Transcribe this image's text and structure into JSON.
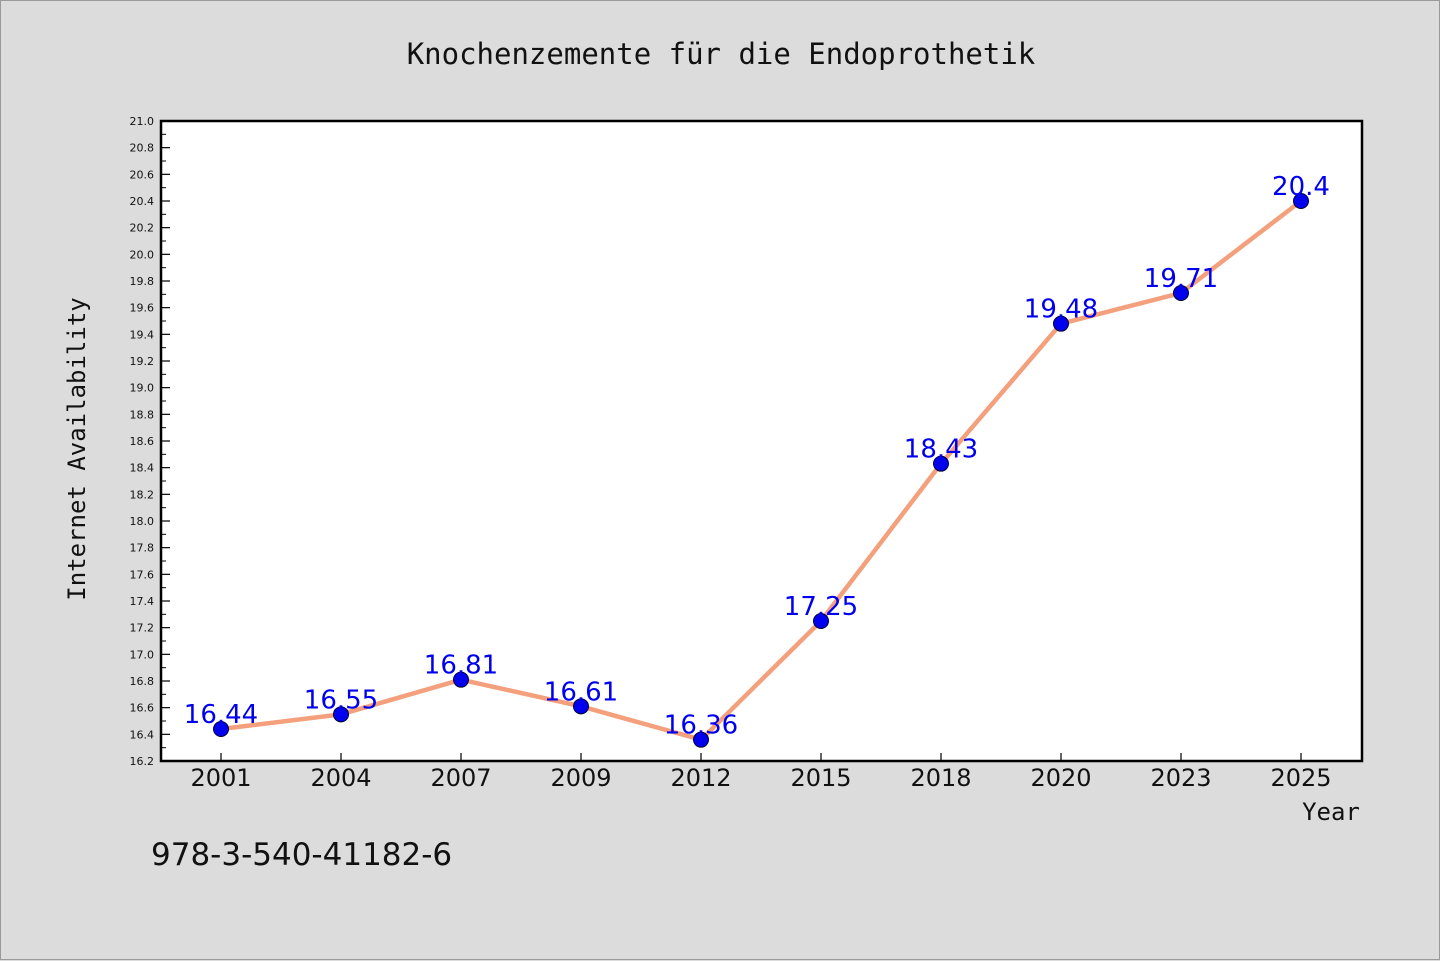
{
  "chart_data": {
    "type": "line",
    "title": "Knochenzemente für die Endoprothetik",
    "xlabel": "Year",
    "ylabel": "Internet Availability",
    "categories": [
      "2001",
      "2004",
      "2007",
      "2009",
      "2012",
      "2015",
      "2018",
      "2020",
      "2023",
      "2025"
    ],
    "series": [
      {
        "values": [
          16.44,
          16.55,
          16.81,
          16.61,
          16.36,
          17.25,
          18.43,
          19.48,
          19.71,
          20.4
        ],
        "labels": [
          "16.44",
          "16.55",
          "16.81",
          "16.61",
          "16.36",
          "17.25",
          "18.43",
          "19.48",
          "19.71",
          "20.4"
        ],
        "line_color": "#f4a07c",
        "marker_color": "#0000ee"
      }
    ],
    "ylim": [
      16.2,
      21.0
    ],
    "yticks": [
      "16.2",
      "16.4",
      "16.6",
      "16.8",
      "17.0",
      "17.2",
      "17.4",
      "17.6",
      "17.8",
      "18.0",
      "18.2",
      "18.4",
      "18.6",
      "18.8",
      "19.0",
      "19.2",
      "19.4",
      "19.6",
      "19.8",
      "20.0",
      "20.2",
      "20.4",
      "20.6",
      "20.8",
      "21.0"
    ],
    "grid": false,
    "legend": "none"
  },
  "footnote": "978-3-540-41182-6"
}
